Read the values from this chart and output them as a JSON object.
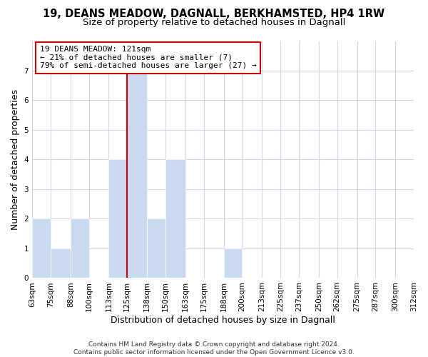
{
  "title": "19, DEANS MEADOW, DAGNALL, BERKHAMSTED, HP4 1RW",
  "subtitle": "Size of property relative to detached houses in Dagnall",
  "xlabel": "Distribution of detached houses by size in Dagnall",
  "ylabel": "Number of detached properties",
  "bin_edges": [
    63,
    75,
    88,
    100,
    113,
    125,
    138,
    150,
    163,
    175,
    188,
    200,
    213,
    225,
    237,
    250,
    262,
    275,
    287,
    300,
    312
  ],
  "bin_labels": [
    "63sqm",
    "75sqm",
    "88sqm",
    "100sqm",
    "113sqm",
    "125sqm",
    "138sqm",
    "150sqm",
    "163sqm",
    "175sqm",
    "188sqm",
    "200sqm",
    "213sqm",
    "225sqm",
    "237sqm",
    "250sqm",
    "262sqm",
    "275sqm",
    "287sqm",
    "300sqm",
    "312sqm"
  ],
  "counts": [
    2,
    1,
    2,
    0,
    4,
    7,
    2,
    4,
    0,
    0,
    1,
    0,
    0,
    0,
    0,
    0,
    0,
    0,
    0,
    0
  ],
  "bar_color": "#c9d9f0",
  "property_line_x": 125,
  "property_line_color": "#cc0000",
  "annotation_line1": "19 DEANS MEADOW: 121sqm",
  "annotation_line2": "← 21% of detached houses are smaller (7)",
  "annotation_line3": "79% of semi-detached houses are larger (27) →",
  "ylim": [
    0,
    8
  ],
  "yticks": [
    0,
    1,
    2,
    3,
    4,
    5,
    6,
    7,
    8
  ],
  "grid_color": "#d0d8e8",
  "background_color": "#ffffff",
  "footer_line1": "Contains HM Land Registry data © Crown copyright and database right 2024.",
  "footer_line2": "Contains public sector information licensed under the Open Government Licence v3.0.",
  "title_fontsize": 10.5,
  "subtitle_fontsize": 9.5,
  "xlabel_fontsize": 9,
  "ylabel_fontsize": 9,
  "tick_fontsize": 7.5,
  "annotation_fontsize": 8,
  "footer_fontsize": 6.5
}
